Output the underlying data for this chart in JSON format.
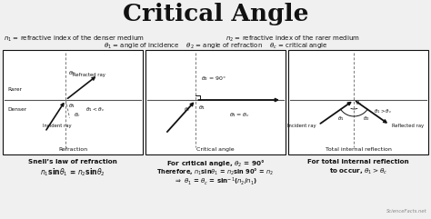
{
  "title": "Critical Angle",
  "bg_color": "#f0f0f0",
  "box_color": "#ffffff",
  "line_color": "#111111",
  "text_color": "#111111",
  "box1_title": "Refraction",
  "box2_title": "Critical angle",
  "box3_title": "Total internal reflection",
  "watermark": "ScienceFacts.net"
}
